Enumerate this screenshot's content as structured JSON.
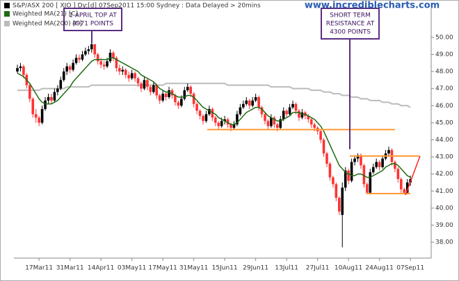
{
  "chart_data": {
    "type": "candlestick",
    "title": "S&P/ASX 200 [ XJO ] Dy:[d] 07Sep2011 15:00 Sydney : Data Delayed > 20mins",
    "title_color": "#000000",
    "watermark": "www.incrediblecharts.com",
    "categories": [
      null,
      null,
      null,
      null,
      null,
      null,
      null,
      "17Mar11",
      null,
      null,
      null,
      null,
      null,
      null,
      null,
      null,
      null,
      "31Mar11",
      null,
      null,
      null,
      null,
      null,
      null,
      null,
      null,
      null,
      "14Apr11",
      null,
      null,
      null,
      null,
      null,
      null,
      null,
      null,
      null,
      "03May11",
      null,
      null,
      null,
      null,
      null,
      null,
      null,
      null,
      null,
      "17May11",
      null,
      null,
      null,
      null,
      null,
      null,
      null,
      null,
      null,
      "31May11",
      null,
      null,
      null,
      null,
      null,
      null,
      null,
      null,
      null,
      "15Jun11",
      null,
      null,
      null,
      null,
      null,
      null,
      null,
      null,
      null,
      "29Jun11",
      null,
      null,
      null,
      null,
      null,
      null,
      null,
      null,
      null,
      "13Jul11",
      null,
      null,
      null,
      null,
      null,
      null,
      null,
      null,
      null,
      "27Jul11",
      null,
      null,
      null,
      null,
      null,
      null,
      null,
      null,
      null,
      "10Aug11",
      null,
      null,
      null,
      null,
      null,
      null,
      null,
      null,
      null,
      "24Aug11",
      null,
      null,
      null,
      null,
      null,
      null,
      null,
      null,
      null,
      "07Sep11"
    ],
    "open": [
      48.0,
      48.2,
      48.3,
      47.8,
      47.2,
      46.4,
      45.5,
      45.3,
      45.0,
      45.8,
      46.3,
      46.5,
      46.3,
      46.8,
      47.0,
      47.5,
      48.0,
      48.3,
      48.1,
      48.5,
      48.8,
      48.7,
      49.0,
      49.2,
      49.3,
      49.6,
      49.0,
      48.6,
      48.4,
      48.3,
      48.6,
      49.1,
      48.8,
      48.2,
      48.0,
      48.1,
      47.8,
      47.6,
      47.9,
      47.6,
      47.3,
      47.0,
      47.5,
      47.1,
      46.8,
      47.2,
      46.6,
      46.3,
      46.7,
      46.5,
      46.9,
      46.6,
      46.2,
      46.0,
      46.4,
      46.9,
      47.1,
      46.7,
      46.1,
      45.7,
      45.4,
      45.1,
      45.5,
      45.8,
      45.3,
      45.0,
      44.8,
      45.1,
      45.2,
      44.9,
      44.7,
      44.9,
      45.5,
      45.9,
      46.1,
      46.3,
      46.0,
      46.3,
      46.5,
      45.9,
      45.5,
      45.1,
      44.8,
      45.3,
      44.9,
      44.7,
      45.2,
      45.7,
      45.5,
      45.9,
      46.1,
      45.7,
      45.3,
      45.6,
      45.4,
      45.2,
      44.9,
      44.7,
      44.5,
      44.0,
      43.2,
      42.6,
      41.8,
      41.4,
      40.6,
      39.6,
      41.2,
      42.2,
      41.6,
      42.7,
      42.9,
      43.1,
      42.5,
      41.4,
      40.9,
      42.1,
      42.4,
      42.7,
      42.4,
      42.9,
      43.2,
      43.4,
      42.7,
      42.3,
      41.7,
      41.1,
      40.9,
      41.5
    ],
    "high": [
      48.4,
      48.5,
      48.4,
      47.9,
      47.3,
      46.5,
      45.8,
      45.4,
      46.0,
      46.5,
      46.7,
      46.7,
      47.0,
      47.2,
      47.7,
      48.2,
      48.5,
      48.4,
      48.7,
      49.0,
      49.0,
      49.2,
      49.4,
      49.5,
      49.7,
      49.6,
      49.1,
      48.8,
      48.6,
      48.8,
      49.3,
      49.2,
      48.9,
      48.4,
      48.3,
      48.2,
      48.0,
      48.1,
      48.0,
      47.7,
      47.4,
      47.7,
      47.6,
      47.2,
      47.4,
      47.3,
      46.7,
      46.9,
      46.8,
      47.1,
      47.0,
      46.7,
      46.3,
      46.6,
      47.1,
      47.3,
      47.2,
      46.8,
      46.2,
      45.8,
      45.5,
      45.7,
      46.0,
      45.9,
      45.4,
      45.1,
      45.3,
      45.4,
      45.3,
      45.0,
      45.1,
      45.7,
      46.1,
      46.3,
      46.5,
      46.4,
      46.5,
      46.7,
      46.6,
      46.0,
      45.6,
      45.2,
      45.5,
      45.4,
      45.0,
      45.4,
      45.9,
      45.8,
      46.1,
      46.3,
      46.2,
      45.8,
      45.8,
      45.7,
      45.5,
      45.3,
      45.0,
      44.8,
      44.6,
      44.1,
      43.3,
      42.7,
      41.9,
      41.5,
      40.7,
      41.5,
      42.4,
      42.3,
      42.9,
      43.1,
      43.2,
      43.2,
      42.6,
      41.5,
      42.3,
      42.6,
      42.9,
      42.8,
      43.1,
      43.4,
      43.6,
      43.5,
      42.8,
      42.4,
      41.8,
      41.2,
      41.7,
      41.9
    ],
    "low": [
      47.9,
      48.0,
      47.6,
      47.0,
      46.2,
      45.3,
      45.0,
      44.8,
      44.9,
      45.7,
      46.1,
      46.1,
      46.2,
      46.6,
      46.9,
      47.4,
      47.8,
      47.9,
      48.0,
      48.4,
      48.5,
      48.6,
      48.9,
      49.0,
      49.1,
      48.8,
      48.4,
      48.2,
      48.1,
      48.2,
      48.5,
      48.6,
      48.0,
      47.8,
      47.8,
      47.6,
      47.4,
      47.5,
      47.4,
      47.1,
      46.8,
      46.9,
      46.9,
      46.6,
      46.7,
      46.4,
      46.1,
      46.2,
      46.3,
      46.4,
      46.4,
      46.0,
      45.8,
      45.9,
      46.3,
      46.8,
      46.5,
      45.9,
      45.5,
      45.2,
      44.9,
      45.0,
      45.4,
      45.1,
      44.8,
      44.6,
      44.7,
      44.9,
      44.7,
      44.5,
      44.6,
      44.8,
      45.4,
      45.8,
      46.0,
      45.8,
      45.9,
      46.2,
      45.7,
      45.3,
      44.9,
      44.6,
      44.7,
      44.7,
      44.5,
      44.6,
      45.1,
      45.3,
      45.4,
      45.8,
      45.5,
      45.1,
      45.2,
      45.2,
      45.0,
      44.7,
      44.5,
      44.3,
      43.8,
      43.0,
      42.4,
      41.6,
      41.2,
      40.4,
      39.6,
      37.7,
      41.0,
      41.4,
      41.5,
      42.5,
      42.7,
      42.3,
      41.2,
      40.8,
      40.8,
      42.0,
      42.3,
      42.2,
      42.3,
      42.8,
      43.0,
      42.5,
      42.1,
      41.5,
      40.9,
      40.8,
      40.8,
      41.3
    ],
    "close": [
      48.2,
      48.3,
      47.8,
      47.2,
      46.4,
      45.5,
      45.3,
      45.0,
      45.8,
      46.3,
      46.5,
      46.3,
      46.8,
      47.0,
      47.5,
      48.0,
      48.3,
      48.1,
      48.5,
      48.8,
      48.7,
      49.0,
      49.2,
      49.3,
      49.6,
      49.0,
      48.6,
      48.4,
      48.3,
      48.6,
      49.1,
      48.8,
      48.2,
      48.0,
      48.1,
      47.8,
      47.6,
      47.9,
      47.6,
      47.3,
      47.0,
      47.5,
      47.1,
      46.8,
      47.2,
      46.6,
      46.3,
      46.7,
      46.5,
      46.9,
      46.6,
      46.2,
      46.0,
      46.4,
      46.9,
      47.1,
      46.7,
      46.1,
      45.7,
      45.4,
      45.1,
      45.5,
      45.8,
      45.3,
      45.0,
      44.8,
      45.1,
      45.2,
      44.9,
      44.7,
      44.9,
      45.5,
      45.9,
      46.1,
      46.3,
      46.0,
      46.3,
      46.5,
      45.9,
      45.5,
      45.1,
      44.8,
      45.3,
      44.9,
      44.7,
      45.2,
      45.7,
      45.5,
      45.9,
      46.1,
      45.7,
      45.3,
      45.6,
      45.4,
      45.2,
      44.9,
      44.7,
      44.5,
      44.0,
      43.2,
      42.6,
      41.8,
      41.4,
      40.6,
      39.8,
      41.2,
      42.2,
      41.6,
      42.7,
      42.9,
      43.1,
      42.5,
      41.4,
      40.9,
      42.1,
      42.4,
      42.7,
      42.4,
      42.9,
      43.2,
      43.4,
      42.7,
      42.3,
      41.7,
      41.1,
      40.9,
      41.5,
      41.7
    ],
    "up_color": "#000000",
    "down_color": "#ff3333",
    "series": [
      {
        "name": "Weighted MA(21) [C]",
        "color": "#1f6b12",
        "values": [
          47.9,
          47.8,
          47.7,
          47.5,
          47.3,
          47.0,
          46.7,
          46.4,
          46.2,
          46.1,
          46.1,
          46.1,
          46.2,
          46.3,
          46.5,
          46.7,
          46.9,
          47.1,
          47.4,
          47.6,
          47.8,
          48.0,
          48.2,
          48.4,
          48.6,
          48.7,
          48.7,
          48.7,
          48.7,
          48.7,
          48.8,
          48.8,
          48.7,
          48.6,
          48.5,
          48.4,
          48.3,
          48.2,
          48.1,
          48.0,
          47.8,
          47.7,
          47.6,
          47.5,
          47.4,
          47.2,
          47.0,
          46.9,
          46.8,
          46.8,
          46.7,
          46.6,
          46.5,
          46.5,
          46.5,
          46.6,
          46.6,
          46.5,
          46.3,
          46.1,
          45.9,
          45.8,
          45.7,
          45.6,
          45.5,
          45.3,
          45.2,
          45.1,
          45.0,
          44.9,
          44.9,
          45.0,
          45.2,
          45.4,
          45.6,
          45.7,
          45.8,
          45.9,
          45.9,
          45.8,
          45.6,
          45.4,
          45.3,
          45.2,
          45.1,
          45.1,
          45.2,
          45.3,
          45.4,
          45.6,
          45.6,
          45.6,
          45.5,
          45.5,
          45.4,
          45.3,
          45.2,
          45.0,
          44.8,
          44.5,
          44.1,
          43.7,
          43.3,
          42.9,
          42.5,
          42.3,
          42.1,
          42.0,
          41.9,
          41.9,
          42.0,
          42.0,
          41.9,
          41.8,
          41.8,
          41.9,
          42.0,
          42.1,
          42.2,
          42.4,
          42.5,
          42.6,
          42.6,
          42.5,
          42.3,
          42.1,
          41.9,
          41.8
        ]
      },
      {
        "name": "Weighted MA(200) [C]",
        "color": "#bbbbbb",
        "values": [
          46.9,
          46.9,
          46.9,
          46.9,
          46.9,
          46.9,
          46.9,
          46.9,
          47.0,
          47.0,
          47.0,
          47.0,
          47.0,
          47.0,
          47.0,
          47.0,
          47.1,
          47.1,
          47.1,
          47.1,
          47.1,
          47.1,
          47.1,
          47.1,
          47.2,
          47.2,
          47.2,
          47.2,
          47.2,
          47.2,
          47.2,
          47.2,
          47.2,
          47.2,
          47.2,
          47.2,
          47.2,
          47.2,
          47.2,
          47.2,
          47.2,
          47.2,
          47.2,
          47.2,
          47.2,
          47.2,
          47.2,
          47.2,
          47.3,
          47.3,
          47.3,
          47.3,
          47.3,
          47.3,
          47.3,
          47.3,
          47.3,
          47.3,
          47.3,
          47.3,
          47.3,
          47.3,
          47.3,
          47.3,
          47.3,
          47.3,
          47.3,
          47.3,
          47.2,
          47.2,
          47.2,
          47.2,
          47.2,
          47.2,
          47.2,
          47.2,
          47.2,
          47.2,
          47.2,
          47.2,
          47.2,
          47.2,
          47.1,
          47.1,
          47.1,
          47.1,
          47.1,
          47.1,
          47.1,
          47.0,
          47.0,
          47.0,
          47.0,
          47.0,
          47.0,
          46.9,
          46.9,
          46.9,
          46.9,
          46.8,
          46.8,
          46.8,
          46.7,
          46.7,
          46.7,
          46.6,
          46.6,
          46.6,
          46.5,
          46.5,
          46.5,
          46.4,
          46.4,
          46.4,
          46.3,
          46.3,
          46.3,
          46.3,
          46.2,
          46.2,
          46.2,
          46.1,
          46.1,
          46.1,
          46.0,
          46.0,
          46.0,
          45.9
        ]
      }
    ],
    "ylim": [
      37.07,
      51.7
    ],
    "yticks": [
      {
        "value": 38,
        "label": "38.00"
      },
      {
        "value": 39,
        "label": "39.00"
      },
      {
        "value": 40,
        "label": "40.00"
      },
      {
        "value": 41,
        "label": "41.00"
      },
      {
        "value": 42,
        "label": "42.00"
      },
      {
        "value": 43,
        "label": "43.00"
      },
      {
        "value": 44,
        "label": "44.00"
      },
      {
        "value": 45,
        "label": "45.00"
      },
      {
        "value": 46,
        "label": "46.00"
      },
      {
        "value": 47,
        "label": "47.00"
      },
      {
        "value": 48,
        "label": "48.00"
      },
      {
        "value": 49,
        "label": "49.00"
      },
      {
        "value": 50,
        "label": "50.00"
      }
    ],
    "levels": [
      {
        "value": 44.6,
        "color": "#ff9933"
      },
      {
        "value": 43.05,
        "color": "#ff9933"
      },
      {
        "value": 40.85,
        "color": "#ff9933"
      }
    ],
    "annotations": [
      {
        "lines": [
          "1 APRIL TOP AT",
          "4971 POINTS"
        ],
        "color": "#5a2d82"
      },
      {
        "lines": [
          "SHORT TERM",
          "RESISTANCE AT",
          "4300 POINTS"
        ],
        "color": "#5a2d82"
      }
    ]
  }
}
